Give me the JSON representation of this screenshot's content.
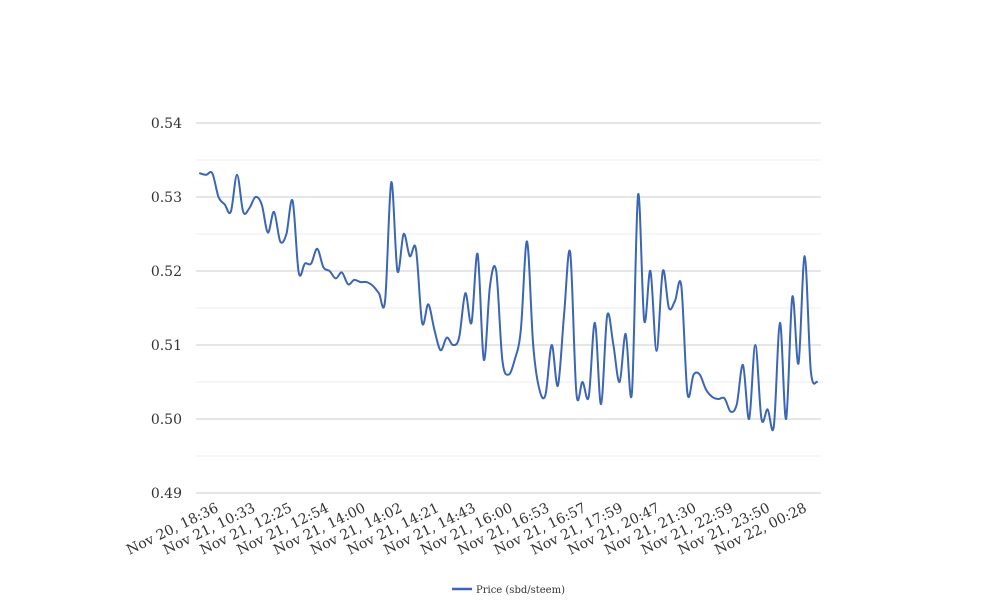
{
  "chart_data": {
    "type": "line",
    "title": "",
    "xlabel": "",
    "ylabel": "",
    "ylim": [
      0.49,
      0.54
    ],
    "yticks": [
      "0.54",
      "0.53",
      "0.52",
      "0.51",
      "0.50",
      "0.49"
    ],
    "ytick_values": [
      0.54,
      0.53,
      0.52,
      0.51,
      0.5,
      0.49
    ],
    "minor_grid_values": [
      0.535,
      0.525,
      0.515,
      0.505,
      0.495
    ],
    "x_tick_labels": [
      "Nov 20, 18:36",
      "Nov 21, 10:33",
      "Nov 21, 12:25",
      "Nov 21, 12:54",
      "Nov 21, 14:00",
      "Nov 21, 14:02",
      "Nov 21, 14:21",
      "Nov 21, 14:43",
      "Nov 21, 16:00",
      "Nov 21, 16:53",
      "Nov 21, 16:57",
      "Nov 21, 17:59",
      "Nov 21, 20:47",
      "Nov 21, 21:30",
      "Nov 21, 22:59",
      "Nov 21, 23:50",
      "Nov 22, 00:28"
    ],
    "grid": true,
    "legend_position": "bottom",
    "series": [
      {
        "name": "Price (sbd/steem)",
        "color": "#3b66b5",
        "values": [
          0.5332,
          0.533,
          0.5332,
          0.53,
          0.529,
          0.528,
          0.533,
          0.528,
          0.5285,
          0.53,
          0.529,
          0.5252,
          0.528,
          0.524,
          0.525,
          0.5295,
          0.5198,
          0.521,
          0.521,
          0.523,
          0.5205,
          0.52,
          0.519,
          0.5198,
          0.5182,
          0.5188,
          0.5185,
          0.5185,
          0.518,
          0.517,
          0.516,
          0.532,
          0.52,
          0.525,
          0.522,
          0.523,
          0.513,
          0.5155,
          0.512,
          0.5093,
          0.511,
          0.51,
          0.511,
          0.517,
          0.513,
          0.5223,
          0.508,
          0.518,
          0.52,
          0.508,
          0.506,
          0.508,
          0.512,
          0.524,
          0.51,
          0.504,
          0.5033,
          0.51,
          0.5045,
          0.514,
          0.5225,
          0.5035,
          0.505,
          0.503,
          0.513,
          0.502,
          0.514,
          0.51,
          0.505,
          0.5115,
          0.5035,
          0.5303,
          0.5133,
          0.52,
          0.5092,
          0.52,
          0.515,
          0.516,
          0.518,
          0.5035,
          0.506,
          0.506,
          0.504,
          0.503,
          0.5027,
          0.5028,
          0.501,
          0.502,
          0.5073,
          0.5,
          0.51,
          0.5,
          0.5013,
          0.499,
          0.513,
          0.5,
          0.5165,
          0.5075,
          0.522,
          0.5065,
          0.505
        ]
      }
    ]
  }
}
